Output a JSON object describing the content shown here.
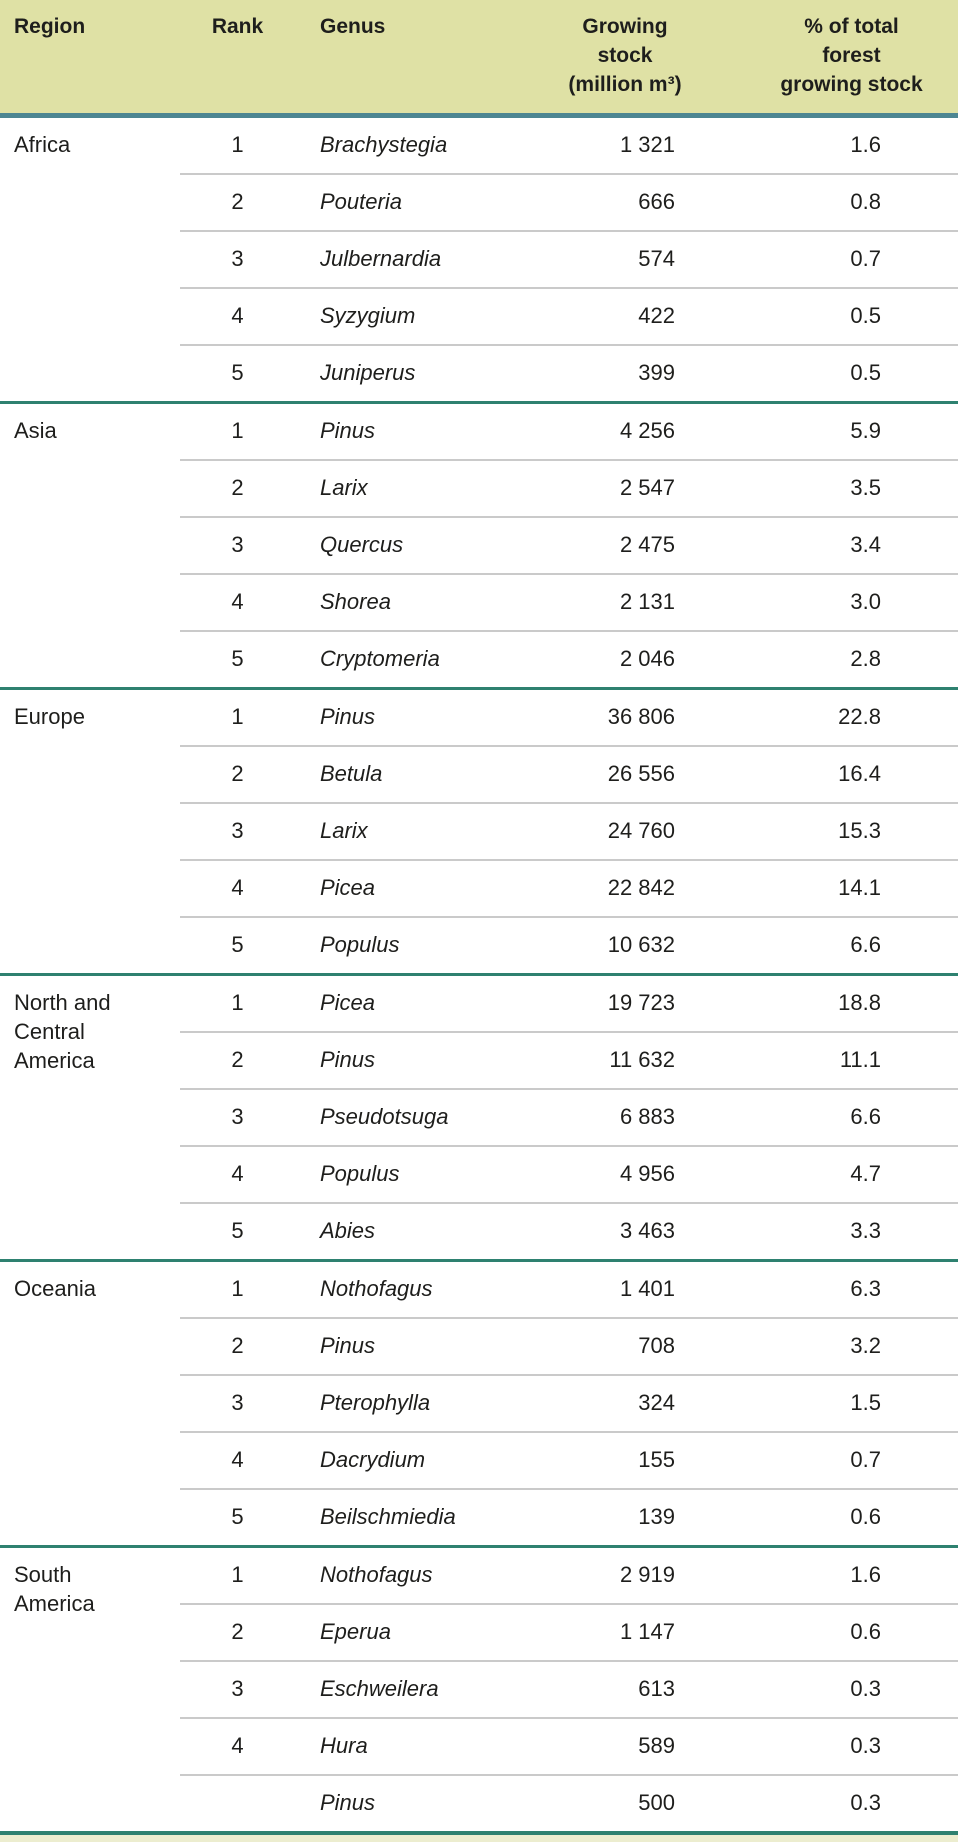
{
  "page": {
    "type": "report-data-table"
  },
  "colors": {
    "header_bg": "#dfe1a5",
    "header_rule": "#4d8692",
    "group_rule": "#2e8170",
    "row_rule": "#cacaca",
    "text": "#1e1e1c",
    "next_section_bg": "#ecedcf"
  },
  "header": {
    "region": "Region",
    "rank": "Rank",
    "genus": "Genus",
    "growing_stock": "Growing\nstock\n(million m³)",
    "percent_total": "% of total\nforest\ngrowing stock"
  },
  "groups": [
    {
      "region": "Africa",
      "rows": [
        {
          "rank": "1",
          "genus": "Brachystegia",
          "stock": "1 321",
          "pct": "1.6"
        },
        {
          "rank": "2",
          "genus": "Pouteria",
          "stock": "666",
          "pct": "0.8"
        },
        {
          "rank": "3",
          "genus": "Julbernardia",
          "stock": "574",
          "pct": "0.7"
        },
        {
          "rank": "4",
          "genus": "Syzygium",
          "stock": "422",
          "pct": "0.5"
        },
        {
          "rank": "5",
          "genus": "Juniperus",
          "stock": "399",
          "pct": "0.5"
        }
      ]
    },
    {
      "region": "Asia",
      "rows": [
        {
          "rank": "1",
          "genus": "Pinus",
          "stock": "4 256",
          "pct": "5.9"
        },
        {
          "rank": "2",
          "genus": "Larix",
          "stock": "2 547",
          "pct": "3.5"
        },
        {
          "rank": "3",
          "genus": "Quercus",
          "stock": "2 475",
          "pct": "3.4"
        },
        {
          "rank": "4",
          "genus": "Shorea",
          "stock": "2 131",
          "pct": "3.0"
        },
        {
          "rank": "5",
          "genus": "Cryptomeria",
          "stock": "2 046",
          "pct": "2.8"
        }
      ]
    },
    {
      "region": "Europe",
      "rows": [
        {
          "rank": "1",
          "genus": "Pinus",
          "stock": "36 806",
          "pct": "22.8"
        },
        {
          "rank": "2",
          "genus": "Betula",
          "stock": "26 556",
          "pct": "16.4"
        },
        {
          "rank": "3",
          "genus": "Larix",
          "stock": "24 760",
          "pct": "15.3"
        },
        {
          "rank": "4",
          "genus": "Picea",
          "stock": "22 842",
          "pct": "14.1"
        },
        {
          "rank": "5",
          "genus": "Populus",
          "stock": "10 632",
          "pct": "6.6"
        }
      ]
    },
    {
      "region": "North and\nCentral\nAmerica",
      "rows": [
        {
          "rank": "1",
          "genus": "Picea",
          "stock": "19 723",
          "pct": "18.8"
        },
        {
          "rank": "2",
          "genus": "Pinus",
          "stock": "11 632",
          "pct": "11.1"
        },
        {
          "rank": "3",
          "genus": "Pseudotsuga",
          "stock": "6 883",
          "pct": "6.6"
        },
        {
          "rank": "4",
          "genus": "Populus",
          "stock": "4 956",
          "pct": "4.7"
        },
        {
          "rank": "5",
          "genus": "Abies",
          "stock": "3 463",
          "pct": "3.3"
        }
      ]
    },
    {
      "region": "Oceania",
      "rows": [
        {
          "rank": "1",
          "genus": "Nothofagus",
          "stock": "1 401",
          "pct": "6.3"
        },
        {
          "rank": "2",
          "genus": "Pinus",
          "stock": "708",
          "pct": "3.2"
        },
        {
          "rank": "3",
          "genus": "Pterophylla",
          "stock": "324",
          "pct": "1.5"
        },
        {
          "rank": "4",
          "genus": "Dacrydium",
          "stock": "155",
          "pct": "0.7"
        },
        {
          "rank": "5",
          "genus": "Beilschmiedia",
          "stock": "139",
          "pct": "0.6"
        }
      ]
    },
    {
      "region": "South\nAmerica",
      "rows": [
        {
          "rank": "1",
          "genus": "Nothofagus",
          "stock": "2 919",
          "pct": "1.6"
        },
        {
          "rank": "2",
          "genus": "Eperua",
          "stock": "1 147",
          "pct": "0.6"
        },
        {
          "rank": "3",
          "genus": "Eschweilera",
          "stock": "613",
          "pct": "0.3"
        },
        {
          "rank": "4",
          "genus": "Hura",
          "stock": "589",
          "pct": "0.3"
        },
        {
          "rank": "",
          "genus": "Pinus",
          "stock": "500",
          "pct": "0.3"
        }
      ]
    }
  ]
}
